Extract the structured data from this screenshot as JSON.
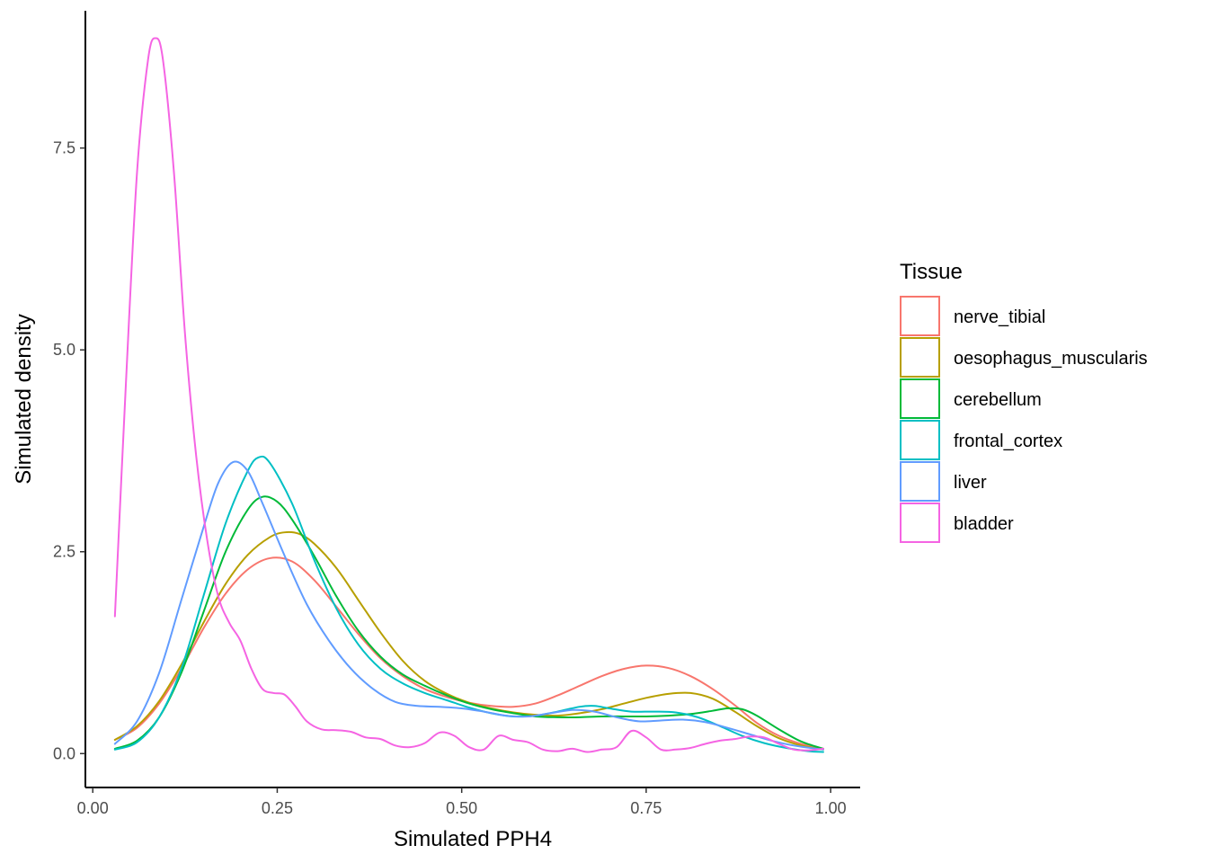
{
  "chart_data": {
    "type": "line",
    "title": "",
    "xlabel": "Simulated PPH4",
    "ylabel": "Simulated density",
    "xlim": [
      -0.01,
      1.04
    ],
    "ylim": [
      -0.42,
      9.2
    ],
    "x_ticks": [
      0.0,
      0.25,
      0.5,
      0.75,
      1.0
    ],
    "x_tick_labels": [
      "0.00",
      "0.25",
      "0.50",
      "0.75",
      "1.00"
    ],
    "y_ticks": [
      0.0,
      2.5,
      5.0,
      7.5
    ],
    "y_tick_labels": [
      "0.0",
      "2.5",
      "5.0",
      "7.5"
    ],
    "grid": false,
    "legend": {
      "title": "Tissue",
      "position": "right"
    },
    "series": [
      {
        "name": "nerve_tibial",
        "color": "#F8766D",
        "points": [
          [
            0.03,
            0.17
          ],
          [
            0.06,
            0.32
          ],
          [
            0.09,
            0.62
          ],
          [
            0.12,
            1.05
          ],
          [
            0.15,
            1.55
          ],
          [
            0.18,
            1.98
          ],
          [
            0.21,
            2.28
          ],
          [
            0.24,
            2.42
          ],
          [
            0.27,
            2.38
          ],
          [
            0.3,
            2.15
          ],
          [
            0.33,
            1.82
          ],
          [
            0.36,
            1.48
          ],
          [
            0.39,
            1.18
          ],
          [
            0.42,
            0.96
          ],
          [
            0.45,
            0.8
          ],
          [
            0.48,
            0.7
          ],
          [
            0.51,
            0.63
          ],
          [
            0.54,
            0.59
          ],
          [
            0.57,
            0.58
          ],
          [
            0.6,
            0.62
          ],
          [
            0.63,
            0.72
          ],
          [
            0.66,
            0.84
          ],
          [
            0.69,
            0.96
          ],
          [
            0.72,
            1.05
          ],
          [
            0.75,
            1.09
          ],
          [
            0.78,
            1.06
          ],
          [
            0.81,
            0.96
          ],
          [
            0.84,
            0.8
          ],
          [
            0.87,
            0.6
          ],
          [
            0.9,
            0.38
          ],
          [
            0.93,
            0.22
          ],
          [
            0.96,
            0.12
          ],
          [
            0.99,
            0.06
          ]
        ]
      },
      {
        "name": "oesophagus_muscularis",
        "color": "#B79F00",
        "points": [
          [
            0.03,
            0.17
          ],
          [
            0.06,
            0.34
          ],
          [
            0.09,
            0.65
          ],
          [
            0.12,
            1.1
          ],
          [
            0.15,
            1.62
          ],
          [
            0.18,
            2.1
          ],
          [
            0.21,
            2.46
          ],
          [
            0.24,
            2.68
          ],
          [
            0.26,
            2.74
          ],
          [
            0.28,
            2.72
          ],
          [
            0.3,
            2.6
          ],
          [
            0.33,
            2.3
          ],
          [
            0.36,
            1.9
          ],
          [
            0.39,
            1.5
          ],
          [
            0.42,
            1.15
          ],
          [
            0.45,
            0.9
          ],
          [
            0.48,
            0.74
          ],
          [
            0.51,
            0.63
          ],
          [
            0.54,
            0.56
          ],
          [
            0.57,
            0.51
          ],
          [
            0.6,
            0.48
          ],
          [
            0.63,
            0.47
          ],
          [
            0.66,
            0.5
          ],
          [
            0.69,
            0.55
          ],
          [
            0.72,
            0.62
          ],
          [
            0.75,
            0.69
          ],
          [
            0.78,
            0.74
          ],
          [
            0.81,
            0.75
          ],
          [
            0.84,
            0.68
          ],
          [
            0.87,
            0.52
          ],
          [
            0.9,
            0.34
          ],
          [
            0.93,
            0.19
          ],
          [
            0.96,
            0.1
          ],
          [
            0.99,
            0.05
          ]
        ]
      },
      {
        "name": "cerebellum",
        "color": "#00BA38",
        "points": [
          [
            0.03,
            0.06
          ],
          [
            0.06,
            0.16
          ],
          [
            0.09,
            0.45
          ],
          [
            0.12,
            1.0
          ],
          [
            0.15,
            1.75
          ],
          [
            0.18,
            2.5
          ],
          [
            0.21,
            3.02
          ],
          [
            0.23,
            3.18
          ],
          [
            0.25,
            3.12
          ],
          [
            0.27,
            2.9
          ],
          [
            0.3,
            2.45
          ],
          [
            0.33,
            1.95
          ],
          [
            0.36,
            1.52
          ],
          [
            0.39,
            1.2
          ],
          [
            0.42,
            0.98
          ],
          [
            0.45,
            0.84
          ],
          [
            0.48,
            0.72
          ],
          [
            0.51,
            0.62
          ],
          [
            0.54,
            0.55
          ],
          [
            0.57,
            0.5
          ],
          [
            0.6,
            0.46
          ],
          [
            0.63,
            0.45
          ],
          [
            0.66,
            0.45
          ],
          [
            0.69,
            0.46
          ],
          [
            0.72,
            0.46
          ],
          [
            0.75,
            0.46
          ],
          [
            0.78,
            0.47
          ],
          [
            0.81,
            0.49
          ],
          [
            0.84,
            0.53
          ],
          [
            0.86,
            0.56
          ],
          [
            0.88,
            0.55
          ],
          [
            0.9,
            0.47
          ],
          [
            0.93,
            0.3
          ],
          [
            0.96,
            0.15
          ],
          [
            0.99,
            0.06
          ]
        ]
      },
      {
        "name": "frontal_cortex",
        "color": "#00BFC4",
        "points": [
          [
            0.03,
            0.05
          ],
          [
            0.06,
            0.14
          ],
          [
            0.09,
            0.45
          ],
          [
            0.12,
            1.05
          ],
          [
            0.15,
            1.95
          ],
          [
            0.18,
            2.85
          ],
          [
            0.21,
            3.5
          ],
          [
            0.225,
            3.67
          ],
          [
            0.24,
            3.6
          ],
          [
            0.27,
            3.1
          ],
          [
            0.3,
            2.4
          ],
          [
            0.33,
            1.8
          ],
          [
            0.36,
            1.35
          ],
          [
            0.39,
            1.05
          ],
          [
            0.42,
            0.87
          ],
          [
            0.45,
            0.75
          ],
          [
            0.48,
            0.66
          ],
          [
            0.51,
            0.57
          ],
          [
            0.54,
            0.5
          ],
          [
            0.57,
            0.46
          ],
          [
            0.6,
            0.47
          ],
          [
            0.63,
            0.52
          ],
          [
            0.66,
            0.58
          ],
          [
            0.68,
            0.59
          ],
          [
            0.7,
            0.56
          ],
          [
            0.73,
            0.52
          ],
          [
            0.76,
            0.52
          ],
          [
            0.79,
            0.51
          ],
          [
            0.82,
            0.45
          ],
          [
            0.85,
            0.34
          ],
          [
            0.88,
            0.22
          ],
          [
            0.91,
            0.13
          ],
          [
            0.94,
            0.07
          ],
          [
            0.97,
            0.03
          ],
          [
            0.99,
            0.02
          ]
        ]
      },
      {
        "name": "liver",
        "color": "#619CFF",
        "points": [
          [
            0.03,
            0.12
          ],
          [
            0.06,
            0.4
          ],
          [
            0.09,
            1.0
          ],
          [
            0.12,
            1.9
          ],
          [
            0.15,
            2.8
          ],
          [
            0.17,
            3.35
          ],
          [
            0.19,
            3.61
          ],
          [
            0.21,
            3.5
          ],
          [
            0.23,
            3.1
          ],
          [
            0.26,
            2.45
          ],
          [
            0.29,
            1.85
          ],
          [
            0.32,
            1.4
          ],
          [
            0.35,
            1.05
          ],
          [
            0.38,
            0.8
          ],
          [
            0.41,
            0.64
          ],
          [
            0.44,
            0.59
          ],
          [
            0.47,
            0.58
          ],
          [
            0.5,
            0.56
          ],
          [
            0.53,
            0.52
          ],
          [
            0.56,
            0.47
          ],
          [
            0.59,
            0.46
          ],
          [
            0.62,
            0.5
          ],
          [
            0.65,
            0.54
          ],
          [
            0.68,
            0.52
          ],
          [
            0.71,
            0.45
          ],
          [
            0.74,
            0.4
          ],
          [
            0.77,
            0.41
          ],
          [
            0.8,
            0.42
          ],
          [
            0.83,
            0.39
          ],
          [
            0.86,
            0.32
          ],
          [
            0.89,
            0.24
          ],
          [
            0.92,
            0.16
          ],
          [
            0.95,
            0.1
          ],
          [
            0.99,
            0.05
          ]
        ]
      },
      {
        "name": "bladder",
        "color": "#F564E3",
        "points": [
          [
            0.03,
            1.7
          ],
          [
            0.045,
            4.6
          ],
          [
            0.06,
            7.2
          ],
          [
            0.075,
            8.6
          ],
          [
            0.085,
            8.86
          ],
          [
            0.095,
            8.6
          ],
          [
            0.11,
            7.2
          ],
          [
            0.125,
            5.2
          ],
          [
            0.14,
            3.7
          ],
          [
            0.155,
            2.65
          ],
          [
            0.17,
            1.95
          ],
          [
            0.185,
            1.62
          ],
          [
            0.2,
            1.4
          ],
          [
            0.215,
            1.05
          ],
          [
            0.23,
            0.8
          ],
          [
            0.245,
            0.75
          ],
          [
            0.26,
            0.73
          ],
          [
            0.275,
            0.58
          ],
          [
            0.29,
            0.4
          ],
          [
            0.31,
            0.3
          ],
          [
            0.33,
            0.29
          ],
          [
            0.35,
            0.27
          ],
          [
            0.37,
            0.2
          ],
          [
            0.39,
            0.18
          ],
          [
            0.41,
            0.1
          ],
          [
            0.43,
            0.08
          ],
          [
            0.45,
            0.13
          ],
          [
            0.47,
            0.26
          ],
          [
            0.49,
            0.22
          ],
          [
            0.51,
            0.08
          ],
          [
            0.53,
            0.05
          ],
          [
            0.55,
            0.22
          ],
          [
            0.57,
            0.17
          ],
          [
            0.59,
            0.14
          ],
          [
            0.61,
            0.05
          ],
          [
            0.63,
            0.03
          ],
          [
            0.65,
            0.06
          ],
          [
            0.67,
            0.02
          ],
          [
            0.69,
            0.05
          ],
          [
            0.71,
            0.08
          ],
          [
            0.73,
            0.28
          ],
          [
            0.75,
            0.2
          ],
          [
            0.77,
            0.05
          ],
          [
            0.79,
            0.05
          ],
          [
            0.81,
            0.07
          ],
          [
            0.83,
            0.12
          ],
          [
            0.85,
            0.16
          ],
          [
            0.87,
            0.18
          ],
          [
            0.89,
            0.21
          ],
          [
            0.91,
            0.2
          ],
          [
            0.93,
            0.12
          ],
          [
            0.95,
            0.05
          ],
          [
            0.97,
            0.04
          ],
          [
            0.99,
            0.06
          ]
        ]
      }
    ]
  }
}
